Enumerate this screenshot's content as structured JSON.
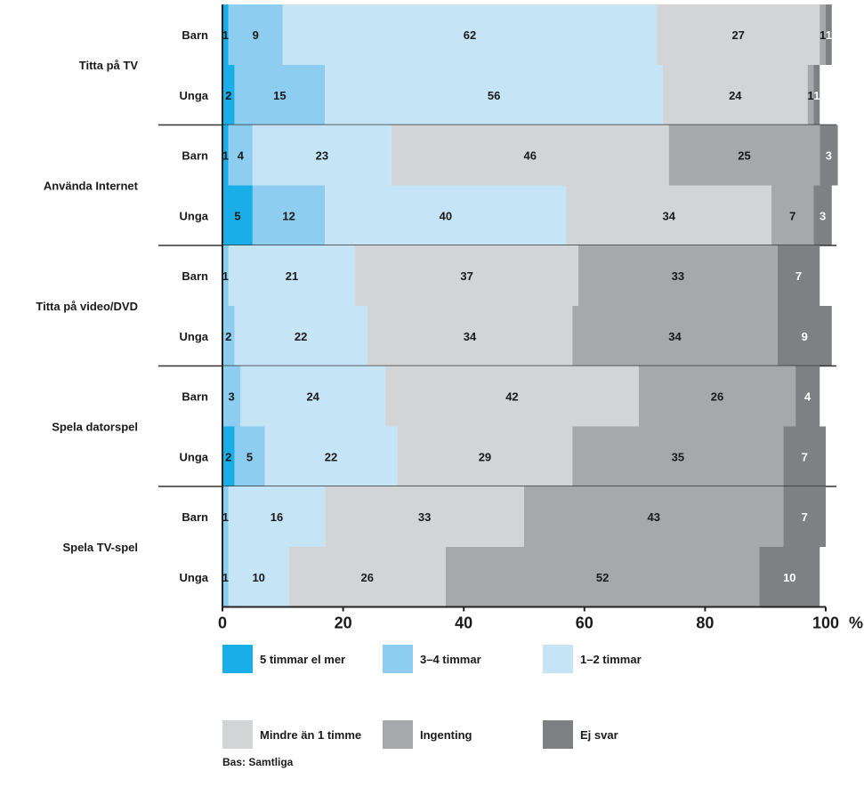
{
  "chart_data": {
    "type": "bar",
    "orientation": "horizontal",
    "stacked": true,
    "x_unit": "%",
    "xlim": [
      0,
      100
    ],
    "x_ticks": [
      "0",
      "20",
      "40",
      "60",
      "80",
      "100"
    ],
    "colors": {
      "5 timmar el mer": "#1aaee8",
      "3–4 timmar": "#8dcdf0",
      "1–2 timmar": "#c5e4f6",
      "Mindre än 1 timme": "#d3d4d6",
      "Ingenting": "#a7a8ab",
      "Ej svar": "#7f8083"
    },
    "legend": [
      "5 timmar el mer",
      "3–4 timmar",
      "1–2 timmar",
      "Mindre än 1 timme",
      "Ingenting",
      "Ej svar"
    ],
    "groups": [
      {
        "activity": "Titta på TV",
        "rows": [
          {
            "label": "Barn",
            "values": [
              1,
              9,
              62,
              27,
              1,
              1
            ]
          },
          {
            "label": "Unga",
            "values": [
              2,
              15,
              56,
              24,
              1,
              1
            ]
          }
        ]
      },
      {
        "activity": "Använda Internet",
        "rows": [
          {
            "label": "Barn",
            "values": [
              1,
              4,
              23,
              46,
              25,
              3
            ]
          },
          {
            "label": "Unga",
            "values": [
              5,
              12,
              40,
              34,
              7,
              3
            ]
          }
        ]
      },
      {
        "activity": "Titta på video/DVD",
        "rows": [
          {
            "label": "Barn",
            "values": [
              0,
              1,
              21,
              37,
              33,
              7
            ]
          },
          {
            "label": "Unga",
            "values": [
              0,
              2,
              22,
              34,
              34,
              9
            ]
          }
        ]
      },
      {
        "activity": "Spela datorspel",
        "rows": [
          {
            "label": "Barn",
            "values": [
              0,
              3,
              24,
              42,
              26,
              4
            ]
          },
          {
            "label": "Unga",
            "values": [
              2,
              5,
              22,
              29,
              35,
              7
            ]
          }
        ]
      },
      {
        "activity": "Spela TV-spel",
        "rows": [
          {
            "label": "Barn",
            "values": [
              0,
              1,
              16,
              33,
              43,
              7
            ]
          },
          {
            "label": "Unga",
            "values": [
              0,
              1,
              10,
              26,
              52,
              10
            ]
          }
        ]
      }
    ],
    "note": "Bas: Samtliga"
  }
}
